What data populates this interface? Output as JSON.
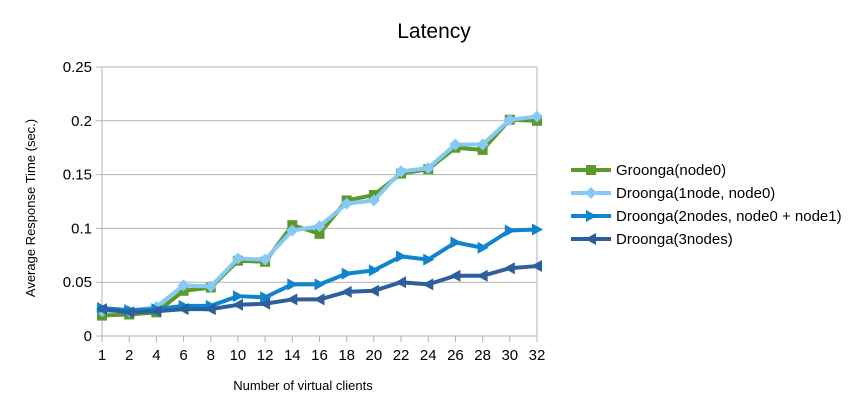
{
  "chart_data": {
    "type": "line",
    "title": "Latency",
    "xlabel": "Number of virtual clients",
    "ylabel": "Average Response Time (sec.)",
    "categories": [
      "1",
      "2",
      "4",
      "6",
      "8",
      "10",
      "12",
      "14",
      "16",
      "18",
      "20",
      "22",
      "24",
      "26",
      "28",
      "30",
      "32"
    ],
    "ylim": [
      0,
      0.25
    ],
    "yticks": [
      "0",
      "0.05",
      "0.1",
      "0.15",
      "0.2",
      "0.25"
    ],
    "grid": "horizontal",
    "legend": "right",
    "series": [
      {
        "name": "Groonga(node0)",
        "color": "#5a9a2b",
        "marker": "square",
        "values": [
          0.019,
          0.02,
          0.022,
          0.042,
          0.045,
          0.07,
          0.069,
          0.103,
          0.095,
          0.126,
          0.131,
          0.151,
          0.155,
          0.175,
          0.173,
          0.201,
          0.2
        ]
      },
      {
        "name": "Droonga(1node, node0)",
        "color": "#86c9f5",
        "marker": "diamond",
        "values": [
          0.023,
          0.023,
          0.027,
          0.047,
          0.046,
          0.072,
          0.071,
          0.098,
          0.102,
          0.123,
          0.126,
          0.153,
          0.156,
          0.178,
          0.178,
          0.201,
          0.204
        ]
      },
      {
        "name": "Droonga(2nodes, node0 + node1)",
        "color": "#0f84cf",
        "marker": "triangle-right",
        "values": [
          0.026,
          0.024,
          0.025,
          0.028,
          0.028,
          0.037,
          0.036,
          0.048,
          0.048,
          0.058,
          0.061,
          0.074,
          0.071,
          0.087,
          0.082,
          0.098,
          0.099
        ]
      },
      {
        "name": "Droonga(3nodes)",
        "color": "#2f5e9c",
        "marker": "triangle-left",
        "values": [
          0.025,
          0.022,
          0.023,
          0.025,
          0.025,
          0.029,
          0.03,
          0.034,
          0.034,
          0.041,
          0.042,
          0.05,
          0.048,
          0.056,
          0.056,
          0.063,
          0.065
        ]
      }
    ]
  }
}
